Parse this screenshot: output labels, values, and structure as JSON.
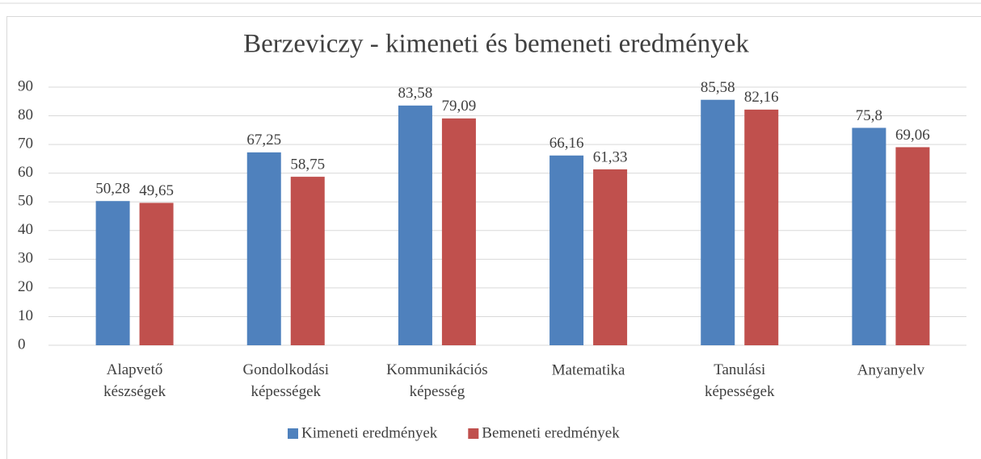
{
  "chart_data": {
    "type": "bar",
    "title": "Berzeviczy - kimeneti és bemeneti eredmények",
    "categories": [
      "Alapvető készségek",
      "Gondolkodási képességek",
      "Kommunikációs képesség",
      "Matematika",
      "Tanulási képességek",
      "Anyanyelv"
    ],
    "series": [
      {
        "name": "Kimeneti eredmények",
        "color": "#4f81bd",
        "values": [
          50.28,
          67.25,
          83.58,
          66.16,
          85.58,
          75.8
        ],
        "value_labels": [
          "50,28",
          "67,25",
          "83,58",
          "66,16",
          "85,58",
          "75,8"
        ]
      },
      {
        "name": "Bemeneti eredmények",
        "color": "#c0504d",
        "values": [
          49.65,
          58.75,
          79.09,
          61.33,
          82.16,
          69.06
        ],
        "value_labels": [
          "49,65",
          "58,75",
          "79,09",
          "61,33",
          "82,16",
          "69,06"
        ]
      }
    ],
    "ylim": [
      0,
      90
    ],
    "yticks": [
      0,
      10,
      20,
      30,
      40,
      50,
      60,
      70,
      80,
      90
    ],
    "grid": true,
    "legend": "bottom"
  }
}
